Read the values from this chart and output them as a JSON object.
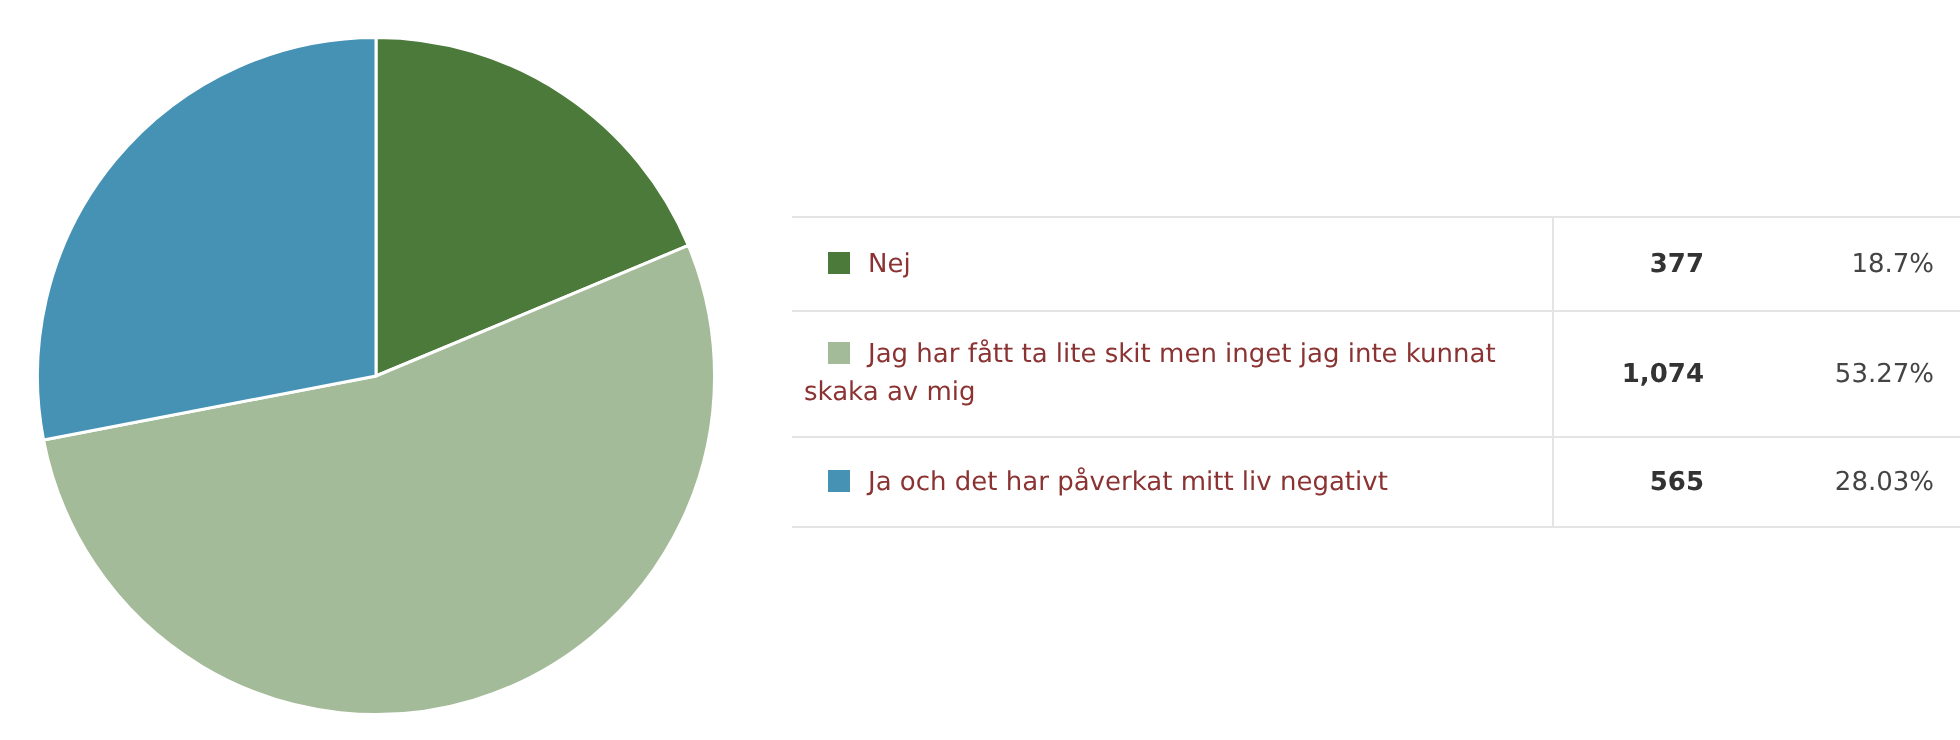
{
  "chart_data": {
    "type": "pie",
    "categories": [
      "Nej",
      "Jag har fått ta lite skit men inget jag inte kunnat skaka av mig",
      "Ja och det har påverkat mitt liv negativt"
    ],
    "values": [
      377,
      1074,
      565
    ],
    "colors": [
      "#4b7a3a",
      "#a3bb98",
      "#4592b5"
    ],
    "value_labels": [
      "377",
      "1,074",
      "565"
    ],
    "annotations": [
      "18.7%",
      "53.27%",
      "28.03%"
    ],
    "legend": "right"
  }
}
